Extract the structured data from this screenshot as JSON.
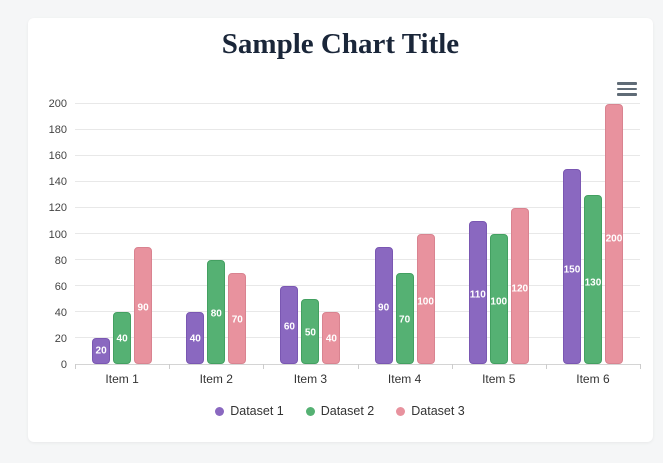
{
  "page": {
    "background_color": "#f5f6f7",
    "card_background_color": "#ffffff"
  },
  "header": {
    "title": "Sample Chart Title",
    "title_color": "#1a2639",
    "menu_icon": "hamburger-icon"
  },
  "chart_data": {
    "type": "bar",
    "title": "Sample Chart Title",
    "categories": [
      "Item 1",
      "Item 2",
      "Item 3",
      "Item 4",
      "Item 5",
      "Item 6"
    ],
    "series": [
      {
        "name": "Dataset 1",
        "color": "#8a68c0",
        "border_color": "#7a57b2",
        "values": [
          20,
          40,
          60,
          90,
          110,
          150
        ]
      },
      {
        "name": "Dataset 2",
        "color": "#55b173",
        "border_color": "#43a061",
        "values": [
          40,
          80,
          50,
          70,
          100,
          130
        ]
      },
      {
        "name": "Dataset 3",
        "color": "#e8929e",
        "border_color": "#d98390",
        "values": [
          90,
          70,
          40,
          100,
          120,
          200
        ]
      }
    ],
    "ylim": [
      0,
      200
    ],
    "yticks": [
      0,
      20,
      40,
      60,
      80,
      100,
      120,
      140,
      160,
      180,
      200
    ],
    "grid": true,
    "data_labels": true,
    "data_label_color": "#ffffff",
    "legend_position": "bottom"
  }
}
